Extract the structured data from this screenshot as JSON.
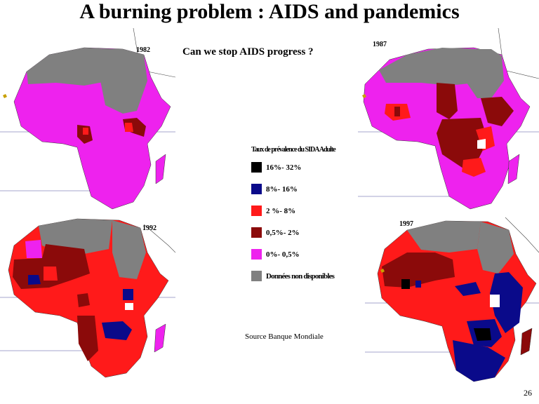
{
  "slide": {
    "title": "A burning problem :  AIDS and   pandemics",
    "subtitle": "Can we stop AIDS progress ?",
    "source": "Source Banque Mondiale",
    "page_number": "26"
  },
  "legend": {
    "title": "Taux de prévalence du SIDA Adulte",
    "items": [
      {
        "label": "16%- 32%",
        "color": "#000000"
      },
      {
        "label": "8%- 16%",
        "color": "#0a0a8a"
      },
      {
        "label": "2 %- 8%",
        "color": "#ff1a1a"
      },
      {
        "label": "0,5%- 2%",
        "color": "#8b0a0a"
      },
      {
        "label": "0%- 0,5%",
        "color": "#ee22ee"
      },
      {
        "label": "Données non disponibles",
        "color": "#808080"
      }
    ]
  },
  "maps": [
    {
      "year": "1982"
    },
    {
      "year": "1987"
    },
    {
      "year": "1992"
    },
    {
      "year": "1997"
    }
  ],
  "colors": {
    "high": "#000000",
    "blue": "#0a0a8a",
    "red": "#ff1a1a",
    "darkred": "#8b0a0a",
    "magenta": "#ee22ee",
    "nodata": "#808080"
  }
}
